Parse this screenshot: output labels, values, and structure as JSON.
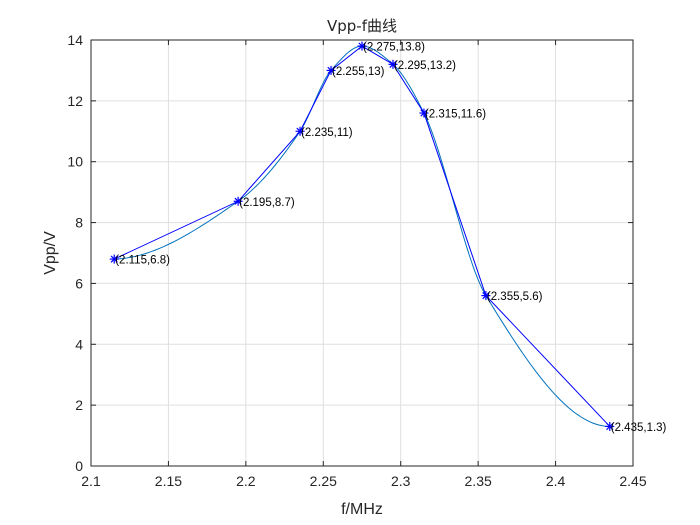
{
  "chart_data": {
    "type": "line",
    "title": "Vpp-f曲线",
    "xlabel": "f/MHz",
    "ylabel": "Vpp/V",
    "xlim": [
      2.1,
      2.45
    ],
    "ylim": [
      0,
      14
    ],
    "xticks": [
      2.1,
      2.15,
      2.2,
      2.25,
      2.3,
      2.35,
      2.4,
      2.45
    ],
    "xtick_labels": [
      "2.1",
      "2.15",
      "2.2",
      "2.25",
      "2.3",
      "2.35",
      "2.4",
      "2.45"
    ],
    "yticks": [
      0,
      2,
      4,
      6,
      8,
      10,
      12,
      14
    ],
    "ytick_labels": [
      "0",
      "2",
      "4",
      "6",
      "8",
      "10",
      "12",
      "14"
    ],
    "grid": true,
    "series": [
      {
        "type": "line-with-markers",
        "marker": "asterisk",
        "color": "#0000ff",
        "x": [
          2.115,
          2.195,
          2.235,
          2.255,
          2.275,
          2.295,
          2.315,
          2.355,
          2.435
        ],
        "y": [
          6.8,
          8.7,
          11,
          13,
          13.8,
          13.2,
          11.6,
          5.6,
          1.3
        ]
      },
      {
        "type": "smooth-curve",
        "color": "#0072bd",
        "x": [
          2.115,
          2.195,
          2.235,
          2.255,
          2.275,
          2.295,
          2.315,
          2.355,
          2.435
        ],
        "y": [
          6.8,
          8.7,
          11,
          13,
          13.8,
          13.2,
          11.6,
          5.6,
          1.3
        ]
      }
    ],
    "point_labels": [
      "(2.115,6.8)",
      "(2.195,8.7)",
      "(2.235,11)",
      "(2.255,13)",
      "(2.275,13.8)",
      "(2.295,13.2)",
      "(2.315,11.6)",
      "(2.355,5.6)",
      "(2.435,1.3)"
    ]
  }
}
